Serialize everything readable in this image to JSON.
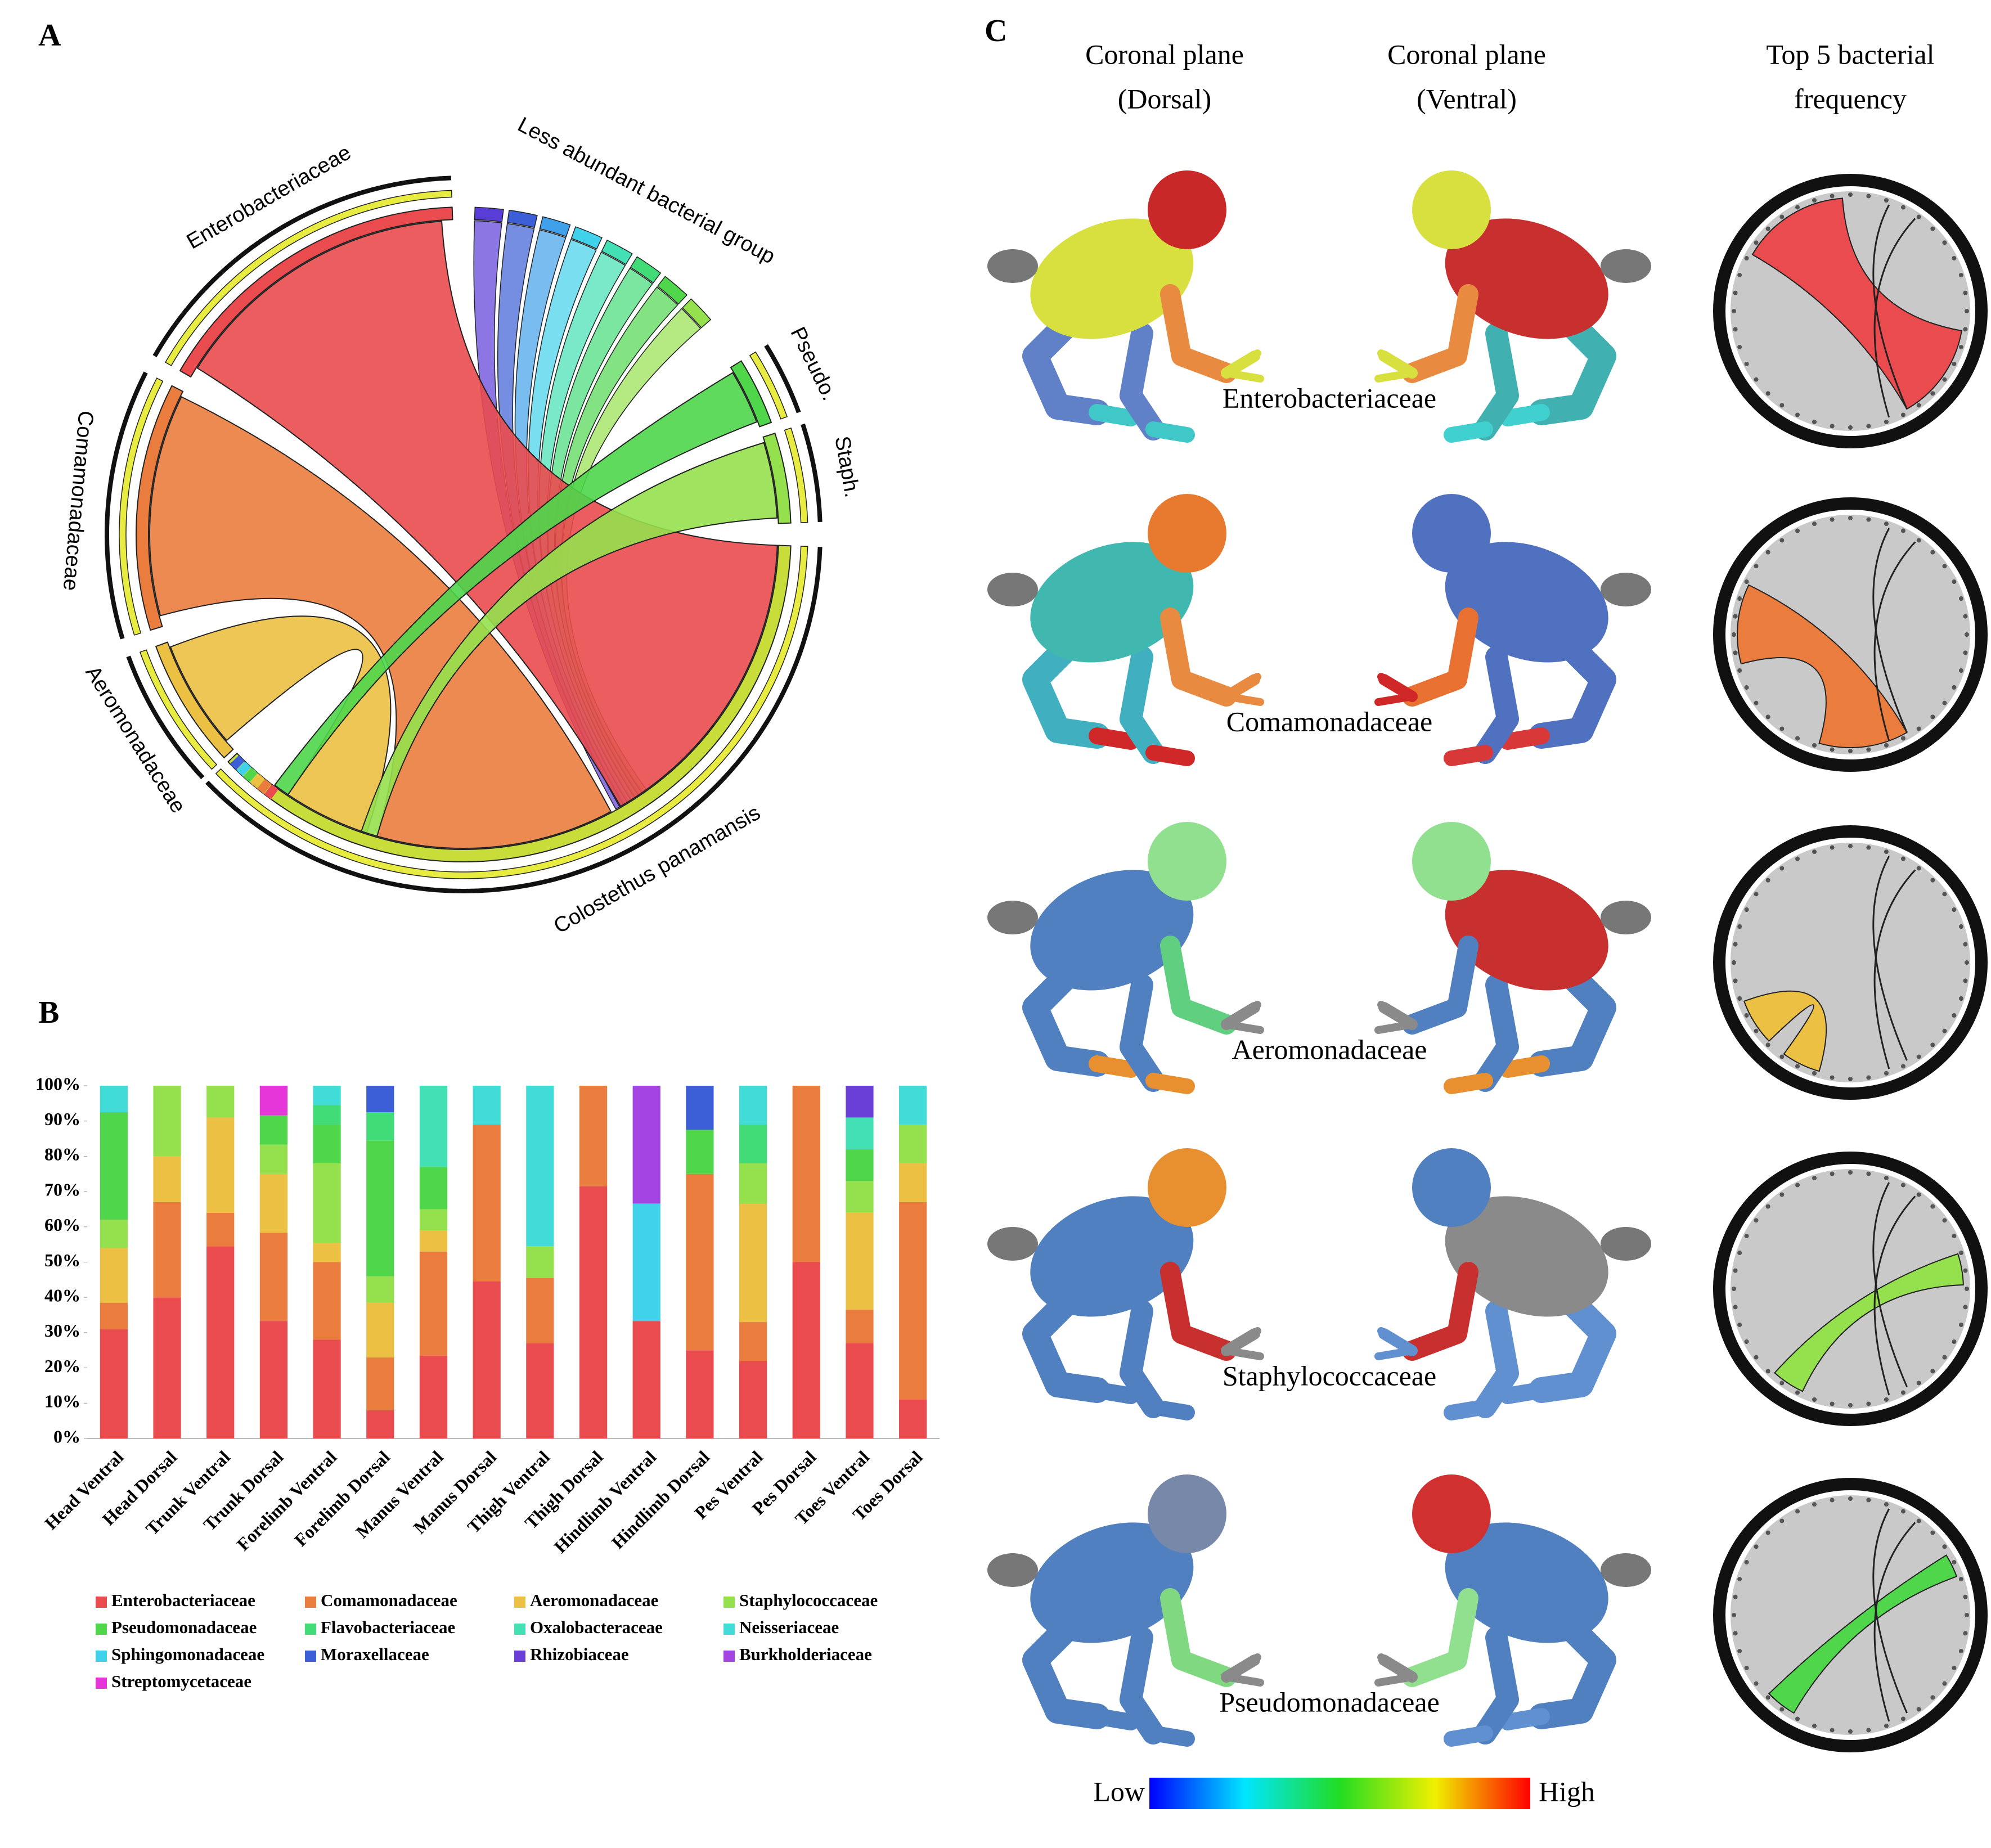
{
  "panel_labels": [
    "A",
    "B",
    "C"
  ],
  "chord_diagram": {
    "labels": [
      "Enterobacteriaceae",
      "Less abundant bacterial group",
      "Pseudo.",
      "Staph.",
      "Comamonadaceae",
      "Aeromonadaceae",
      "Colostethus panamansis"
    ]
  },
  "chart_data": {
    "type": "bar",
    "stacked": true,
    "categories": [
      "Head Ventral",
      "Head Dorsal",
      "Trunk Ventral",
      "Trunk Dorsal",
      "Forelimb Ventral",
      "Forelimb Dorsal",
      "Manus Ventral",
      "Manus Dorsal",
      "Thigh Ventral",
      "Thigh Dorsal",
      "Hindlimb Ventral",
      "Hindlimb Dorsal",
      "Pes Ventral",
      "Pes Dorsal",
      "Toes Ventral",
      "Toes Dorsal"
    ],
    "series": [
      {
        "name": "Enterobacteriaceae",
        "color": "#e94b4e",
        "values": [
          31,
          40,
          54.5,
          33.3,
          28,
          8,
          23.5,
          44.5,
          27,
          71.5,
          33.3,
          25,
          22,
          50,
          27,
          11
        ]
      },
      {
        "name": "Comamonadaceae",
        "color": "#ea7d3e",
        "values": [
          7.5,
          27,
          9.5,
          25,
          22,
          15,
          29.5,
          44.5,
          18.5,
          28.5,
          0,
          50,
          11,
          50,
          9.5,
          56
        ]
      },
      {
        "name": "Aeromonadaceae",
        "color": "#ecc043",
        "values": [
          15.5,
          13,
          27,
          16.7,
          5.5,
          15.5,
          6,
          0,
          0,
          0,
          0,
          0,
          33.5,
          0,
          27.5,
          11
        ]
      },
      {
        "name": "Staphylococcaceae",
        "color": "#95e04d",
        "values": [
          8,
          20,
          9,
          8.3,
          22.5,
          7.5,
          6,
          0,
          9,
          0,
          0,
          0,
          11.5,
          0,
          9,
          11
        ]
      },
      {
        "name": "Pseudomonadaceae",
        "color": "#4fd64b",
        "values": [
          30.5,
          0,
          0,
          8.3,
          11,
          38.5,
          12,
          0,
          0,
          0,
          0,
          12.5,
          0,
          0,
          9,
          0
        ]
      },
      {
        "name": "Flavobacteriaceae",
        "color": "#41dc78",
        "values": [
          0,
          0,
          0,
          0,
          5.5,
          8,
          0,
          0,
          0,
          0,
          0,
          0,
          11,
          0,
          0,
          0
        ]
      },
      {
        "name": "Oxalobacteraceae",
        "color": "#42e0b4",
        "values": [
          0,
          0,
          0,
          0,
          0,
          0,
          23,
          0,
          0,
          0,
          0,
          0,
          0,
          0,
          9,
          0
        ]
      },
      {
        "name": "Neisseriaceae",
        "color": "#42dcd8",
        "values": [
          7.5,
          0,
          0,
          0,
          5.5,
          0,
          0,
          11,
          45.5,
          0,
          0,
          0,
          11,
          0,
          0,
          11
        ]
      },
      {
        "name": "Sphingomonadaceae",
        "color": "#40d2ea",
        "values": [
          0,
          0,
          0,
          0,
          0,
          0,
          0,
          0,
          0,
          0,
          33.3,
          0,
          0,
          0,
          0,
          0
        ]
      },
      {
        "name": "Moraxellaceae",
        "color": "#3c5ed6",
        "values": [
          0,
          0,
          0,
          0,
          0,
          7.5,
          0,
          0,
          0,
          0,
          0,
          12.5,
          0,
          0,
          0,
          0
        ]
      },
      {
        "name": "Rhizobiaceae",
        "color": "#6a3fd8",
        "values": [
          0,
          0,
          0,
          0,
          0,
          0,
          0,
          0,
          0,
          0,
          0,
          0,
          0,
          0,
          9,
          0
        ]
      },
      {
        "name": "Burkholderiaceae",
        "color": "#a444e2",
        "values": [
          0,
          0,
          0,
          0,
          0,
          0,
          0,
          0,
          0,
          0,
          33.4,
          0,
          0,
          0,
          0,
          0
        ]
      },
      {
        "name": "Streptomycetaceae",
        "color": "#e635d8",
        "values": [
          0,
          0,
          0,
          8.4,
          0,
          0,
          0,
          0,
          0,
          0,
          0,
          0,
          0,
          0,
          0,
          0
        ]
      }
    ],
    "ylim": [
      0,
      100
    ],
    "yticks": [
      {
        "value": 0,
        "label": "0%"
      },
      {
        "value": 10,
        "label": "10%"
      },
      {
        "value": 20,
        "label": "20%"
      },
      {
        "value": 30,
        "label": "30%"
      },
      {
        "value": 40,
        "label": "40%"
      },
      {
        "value": 50,
        "label": "50%"
      },
      {
        "value": 60,
        "label": "60%"
      },
      {
        "value": 70,
        "label": "70%"
      },
      {
        "value": 80,
        "label": "80%"
      },
      {
        "value": 90,
        "label": "90%"
      },
      {
        "value": 100,
        "label": "100%"
      }
    ]
  },
  "frog_panel": {
    "column_headers": [
      [
        "Coronal plane",
        "(Dorsal)"
      ],
      [
        "Coronal plane",
        "(Ventral)"
      ],
      [
        "Top 5 bacterial",
        "frequency"
      ]
    ],
    "rows": [
      "Enterobacteriaceae",
      "Comamonadaceae",
      "Aeromonadaceae",
      "Staphylococcaceae",
      "Pseudomonadaceae"
    ],
    "colorbar": {
      "low": "Low",
      "high": "High"
    }
  }
}
